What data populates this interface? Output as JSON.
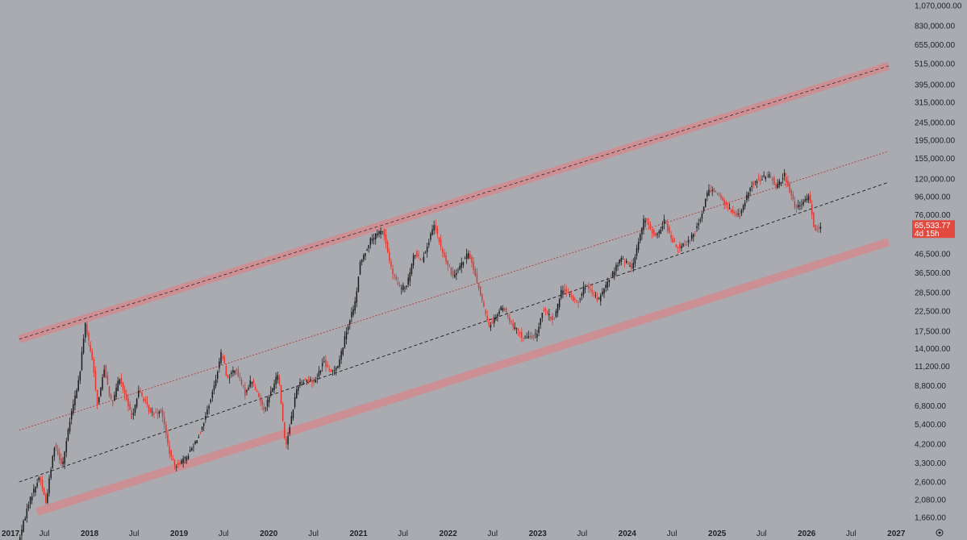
{
  "chart_data": {
    "type": "candlestick",
    "y_scale": "log",
    "ylim": [
      1500,
      1150000
    ],
    "xlim": [
      "2017-01-01",
      "2027-02-15"
    ],
    "y_ticks": [
      "1,070,000.00",
      "830,000.00",
      "655,000.00",
      "515,000.00",
      "395,000.00",
      "315,000.00",
      "245,000.00",
      "195,000.00",
      "155,000.00",
      "120,000.00",
      "96,000.00",
      "76,000.00",
      "46,500.00",
      "36,500.00",
      "28,500.00",
      "22,500.00",
      "17,500.00",
      "14,000.00",
      "11,200.00",
      "8,800.00",
      "6,800.00",
      "5,400.00",
      "4,200.00",
      "3,300.00",
      "2,600.00",
      "2,080.00",
      "1,660.00"
    ],
    "x_ticks": [
      {
        "label": "2017",
        "date": "2017-01-01",
        "bold": true
      },
      {
        "label": "Jul",
        "date": "2017-07-01",
        "bold": false
      },
      {
        "label": "2018",
        "date": "2018-01-01",
        "bold": true
      },
      {
        "label": "Jul",
        "date": "2018-07-01",
        "bold": false
      },
      {
        "label": "2019",
        "date": "2019-01-01",
        "bold": true
      },
      {
        "label": "Jul",
        "date": "2019-07-01",
        "bold": false
      },
      {
        "label": "2020",
        "date": "2020-01-01",
        "bold": true
      },
      {
        "label": "Jul",
        "date": "2020-07-01",
        "bold": false
      },
      {
        "label": "2021",
        "date": "2021-01-01",
        "bold": true
      },
      {
        "label": "Jul",
        "date": "2021-07-01",
        "bold": false
      },
      {
        "label": "2022",
        "date": "2022-01-01",
        "bold": true
      },
      {
        "label": "Jul",
        "date": "2022-07-01",
        "bold": false
      },
      {
        "label": "2023",
        "date": "2023-01-01",
        "bold": true
      },
      {
        "label": "Jul",
        "date": "2023-07-01",
        "bold": false
      },
      {
        "label": "2024",
        "date": "2024-01-01",
        "bold": true
      },
      {
        "label": "Jul",
        "date": "2024-07-01",
        "bold": false
      },
      {
        "label": "2025",
        "date": "2025-01-01",
        "bold": true
      },
      {
        "label": "Jul",
        "date": "2025-07-01",
        "bold": false
      },
      {
        "label": "2026",
        "date": "2026-01-01",
        "bold": true
      },
      {
        "label": "Jul",
        "date": "2026-07-01",
        "bold": false
      },
      {
        "label": "2027",
        "date": "2027-01-01",
        "bold": true
      }
    ],
    "price_path": [
      [
        "2017-03-20",
        1200
      ],
      [
        "2017-05-01",
        2000
      ],
      [
        "2017-06-15",
        2800
      ],
      [
        "2017-07-10",
        2000
      ],
      [
        "2017-08-15",
        4200
      ],
      [
        "2017-09-15",
        3200
      ],
      [
        "2017-10-20",
        6000
      ],
      [
        "2017-11-25",
        10000
      ],
      [
        "2017-12-17",
        19500
      ],
      [
        "2018-01-20",
        11000
      ],
      [
        "2018-02-06",
        6800
      ],
      [
        "2018-03-05",
        11000
      ],
      [
        "2018-04-06",
        6800
      ],
      [
        "2018-05-05",
        9800
      ],
      [
        "2018-06-25",
        5900
      ],
      [
        "2018-07-25",
        8300
      ],
      [
        "2018-09-10",
        6200
      ],
      [
        "2018-10-25",
        6400
      ],
      [
        "2018-11-25",
        3800
      ],
      [
        "2018-12-15",
        3200
      ],
      [
        "2019-02-01",
        3500
      ],
      [
        "2019-04-05",
        5000
      ],
      [
        "2019-05-25",
        8500
      ],
      [
        "2019-06-26",
        13500
      ],
      [
        "2019-07-20",
        9500
      ],
      [
        "2019-08-20",
        11000
      ],
      [
        "2019-09-30",
        8000
      ],
      [
        "2019-10-26",
        9500
      ],
      [
        "2019-12-17",
        6500
      ],
      [
        "2020-02-12",
        10300
      ],
      [
        "2020-03-13",
        4000
      ],
      [
        "2020-04-30",
        8800
      ],
      [
        "2020-06-01",
        9500
      ],
      [
        "2020-07-10",
        9200
      ],
      [
        "2020-08-15",
        12000
      ],
      [
        "2020-09-10",
        10300
      ],
      [
        "2020-10-15",
        11500
      ],
      [
        "2020-11-20",
        18500
      ],
      [
        "2020-12-25",
        26000
      ],
      [
        "2021-01-08",
        40000
      ],
      [
        "2021-02-20",
        55000
      ],
      [
        "2021-04-14",
        63000
      ],
      [
        "2021-05-20",
        37000
      ],
      [
        "2021-06-22",
        30000
      ],
      [
        "2021-07-20",
        31000
      ],
      [
        "2021-08-20",
        47000
      ],
      [
        "2021-09-20",
        43000
      ],
      [
        "2021-11-10",
        67000
      ],
      [
        "2021-12-10",
        48000
      ],
      [
        "2022-01-22",
        35000
      ],
      [
        "2022-03-30",
        47000
      ],
      [
        "2022-05-10",
        30000
      ],
      [
        "2022-06-18",
        18500
      ],
      [
        "2022-08-15",
        24000
      ],
      [
        "2022-09-20",
        19000
      ],
      [
        "2022-11-09",
        16000
      ],
      [
        "2022-12-30",
        16500
      ],
      [
        "2023-01-25",
        23000
      ],
      [
        "2023-03-10",
        20000
      ],
      [
        "2023-04-14",
        30000
      ],
      [
        "2023-06-15",
        25000
      ],
      [
        "2023-07-15",
        31000
      ],
      [
        "2023-09-10",
        26000
      ],
      [
        "2023-10-25",
        34000
      ],
      [
        "2023-12-10",
        44000
      ],
      [
        "2024-01-23",
        39000
      ],
      [
        "2024-03-14",
        73000
      ],
      [
        "2024-05-01",
        57000
      ],
      [
        "2024-06-05",
        71000
      ],
      [
        "2024-07-05",
        54000
      ],
      [
        "2024-08-05",
        50000
      ],
      [
        "2024-09-06",
        53000
      ],
      [
        "2024-10-29",
        72000
      ],
      [
        "2024-11-22",
        99000
      ],
      [
        "2024-12-17",
        107000
      ],
      [
        "2025-02-28",
        80000
      ],
      [
        "2025-04-08",
        75000
      ],
      [
        "2025-05-22",
        111000
      ],
      [
        "2025-07-14",
        123000
      ],
      [
        "2025-08-14",
        124000
      ],
      [
        "2025-09-01",
        108000
      ],
      [
        "2025-10-06",
        126000
      ],
      [
        "2025-11-21",
        82000
      ],
      [
        "2025-12-20",
        88000
      ],
      [
        "2026-01-14",
        97000
      ],
      [
        "2026-02-05",
        63000
      ],
      [
        "2026-02-25",
        65533.77
      ]
    ],
    "channel_lines": [
      {
        "role": "upper-band",
        "start": [
          "2017-03-20",
          15800
        ],
        "end": [
          "2026-12-01",
          500000
        ],
        "style": "band-dashed"
      },
      {
        "role": "mid-upper",
        "start": [
          "2017-03-20",
          5000
        ],
        "end": [
          "2026-12-01",
          170000
        ],
        "style": "dotted-red"
      },
      {
        "role": "mid",
        "start": [
          "2017-03-20",
          2600
        ],
        "end": [
          "2026-12-01",
          115000
        ],
        "style": "dashed-black"
      },
      {
        "role": "lower-band",
        "start": [
          "2017-06-01",
          1780
        ],
        "end": [
          "2026-12-01",
          54000
        ],
        "style": "band-solid"
      }
    ],
    "current_price": {
      "value": "65,533.77",
      "countdown": "4d 15h",
      "y": 65533.77
    },
    "colors": {
      "background": "#a9abb1",
      "up": "#1b1b1b",
      "down": "#e0382f",
      "band": "#cc8f93",
      "badge": "#e24a40"
    }
  },
  "footer": {
    "settings_icon": "gear-icon"
  }
}
